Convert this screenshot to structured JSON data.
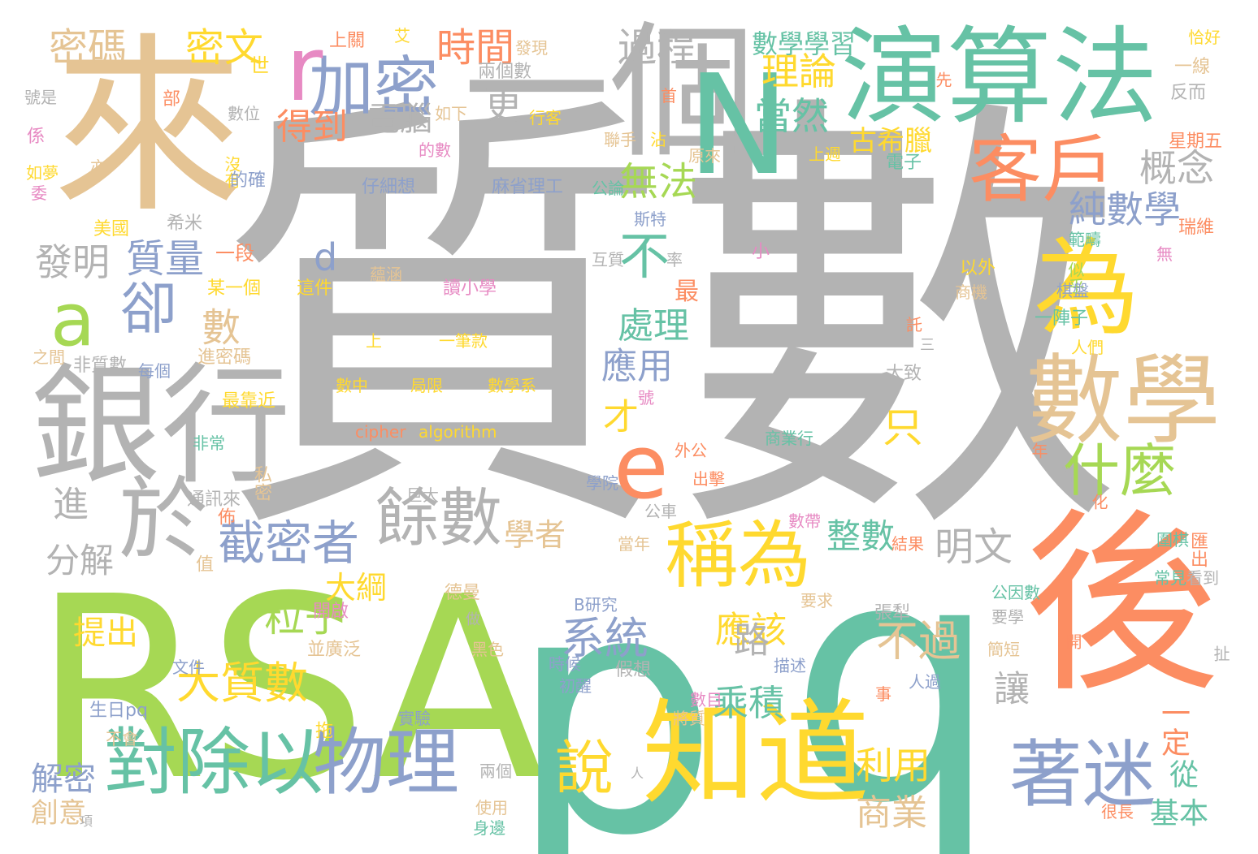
{
  "palette": {
    "gray": "#b3b3b3",
    "teal": "#66c2a5",
    "orange": "#fc8d62",
    "blue": "#8da0cb",
    "pink": "#e78ac3",
    "green": "#a6d854",
    "yellow": "#ffd92f",
    "tan": "#e5c494"
  },
  "words": [
    "質數",
    "RSA",
    "p",
    "q",
    "來",
    "後",
    "演算法",
    "一個",
    "數學",
    "銀行",
    "為",
    "知道",
    "N",
    "客戶",
    "加密",
    "a",
    "對除以",
    "物理",
    "稱為",
    "著迷",
    "餘數",
    "截密者",
    "於",
    "e",
    "什麼",
    "卻",
    "說",
    "系統",
    "粒子",
    "大質數",
    "不",
    "不過",
    "密文",
    "密碼",
    "時間",
    "過程",
    "理論",
    "當然",
    "古希臘",
    "概念",
    "純數學",
    "無法",
    "質量",
    "發明",
    "d",
    "數",
    "處理",
    "應用",
    "只",
    "才",
    "進",
    "分解",
    "學者",
    "整數",
    "應該",
    "乘積",
    "路",
    "明文",
    "讓",
    "利用",
    "商業",
    "從",
    "基本",
    "一定",
    "提出",
    "解密",
    "創意",
    "大綱",
    "得到",
    "電腦",
    "更",
    "r",
    "數學學習",
    "上關",
    "艾",
    "發現",
    "恰好",
    "一線",
    "反而",
    "星期五",
    "瑞維",
    "世",
    "號是",
    "數位",
    "係",
    "沒有",
    "如夢",
    "委",
    "的確",
    "美國",
    "希米",
    "一段",
    "某一個",
    "這件",
    "讀小學",
    "最",
    "最靠近",
    "非常",
    "私密",
    "通訊來",
    "之間",
    "非質數",
    "每個",
    "進密碼",
    "上",
    "一筆款",
    "數中",
    "局限",
    "數學系",
    "cipher",
    "algorithm",
    "行客",
    "如下",
    "兩個數",
    "先",
    "聯手",
    "沾",
    "原來",
    "上週",
    "電子",
    "仔細想",
    "麻省理工",
    "公論",
    "斯特",
    "小",
    "互質",
    "率",
    "蘊涵",
    "無",
    "範疇",
    "似乎",
    "以外",
    "棋盤",
    "商機",
    "一陣子",
    "人們",
    "大致",
    "三",
    "託",
    "號",
    "外公",
    "商業行",
    "學院",
    "出擊",
    "巨大",
    "公車",
    "數帶",
    "結果",
    "當年",
    "圍棋",
    "匯出",
    "常見",
    "看到",
    "要求",
    "張犁",
    "B研究",
    "德曼",
    "開啟",
    "做",
    "黑色",
    "並廣泛",
    "文件",
    "時候",
    "初醒",
    "假想",
    "描述",
    "數目",
    "人過",
    "事",
    "簡短",
    "扯",
    "開",
    "生日pq",
    "實驗",
    "不會",
    "將質",
    "兩個",
    "使用",
    "身邊",
    "人",
    "很長",
    "項",
    "倍",
    "化",
    "年",
    "部",
    "的數",
    "首",
    "公因數",
    "要學",
    "拖",
    "亦",
    "佈",
    "值"
  ]
}
